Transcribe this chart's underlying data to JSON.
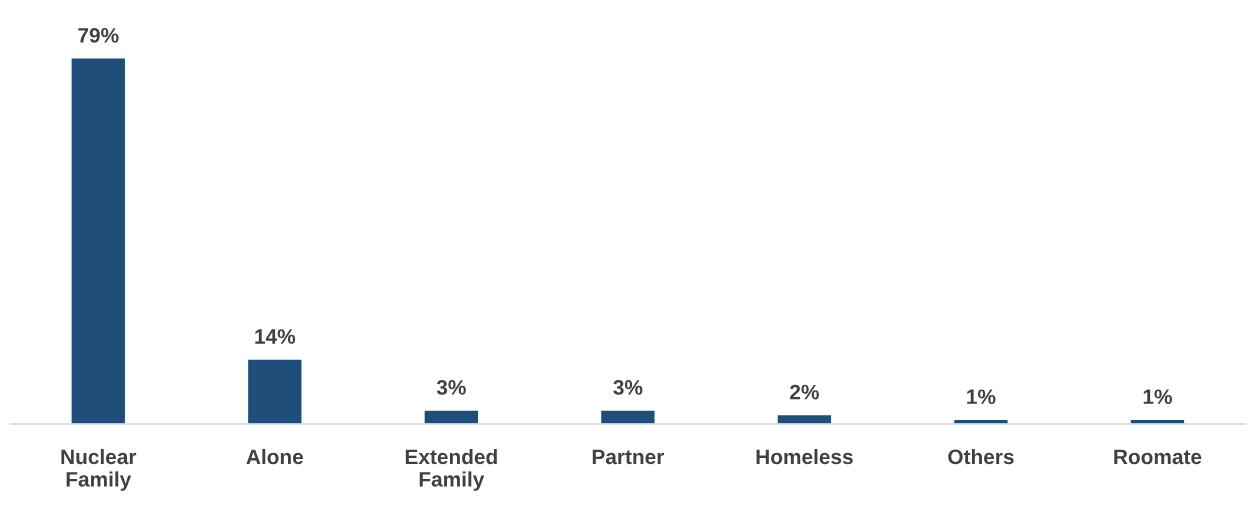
{
  "chart_data": {
    "type": "bar",
    "categories": [
      "Nuclear Family",
      "Alone",
      "Extended Family",
      "Partner",
      "Homeless",
      "Others",
      "Roomate"
    ],
    "values": [
      79,
      14,
      3,
      3,
      2,
      1,
      1
    ],
    "value_labels": [
      "79%",
      "14%",
      "3%",
      "3%",
      "2%",
      "1%",
      "1%"
    ],
    "color": "#1f4e79",
    "grid": false,
    "legend": false
  }
}
